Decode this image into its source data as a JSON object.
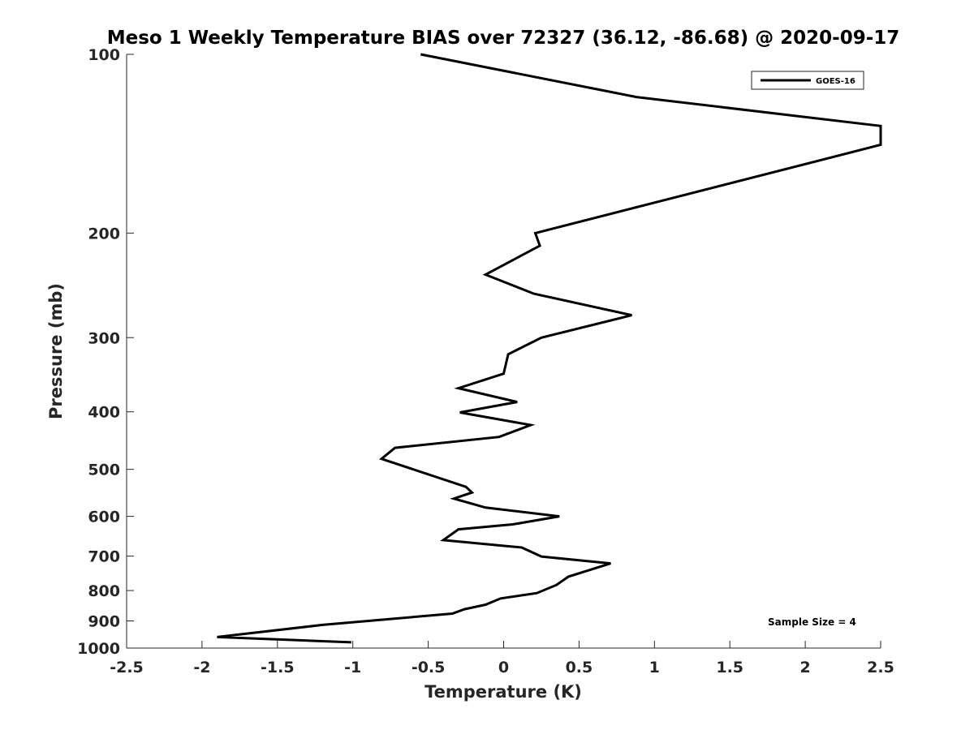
{
  "chart_data": {
    "type": "line",
    "title": "Meso 1 Weekly Temperature BIAS over 72327 (36.12, -86.68) @ 2020-09-17",
    "xlabel": "Temperature (K)",
    "ylabel": "Pressure (mb)",
    "xlim": [
      -2.5,
      2.5
    ],
    "ylim": [
      100,
      1000
    ],
    "y_scale": "log",
    "y_reversed": true,
    "xticks": [
      -2.5,
      -2,
      -1.5,
      -1,
      -0.5,
      0,
      0.5,
      1,
      1.5,
      2,
      2.5
    ],
    "xtick_labels": [
      "-2.5",
      "-2",
      "-1.5",
      "-1",
      "-0.5",
      "0",
      "0.5",
      "1",
      "1.5",
      "2",
      "2.5"
    ],
    "yticks": [
      100,
      200,
      300,
      400,
      500,
      600,
      700,
      800,
      900,
      1000
    ],
    "ytick_labels": [
      "100",
      "200",
      "300",
      "400",
      "500",
      "600",
      "700",
      "800",
      "900",
      "1000"
    ],
    "grid": false,
    "legend": {
      "position": "top-right",
      "entries": [
        "GOES-16"
      ]
    },
    "annotation": "Sample Size = 4",
    "series": [
      {
        "name": "GOES-16",
        "color": "#000000",
        "x": [
          -0.55,
          0.88,
          2.5,
          2.5,
          0.21,
          0.24,
          -0.12,
          0.2,
          0.85,
          0.25,
          0.03,
          0,
          -0.3,
          0.09,
          -0.29,
          0.18,
          -0.03,
          -0.72,
          -0.81,
          -0.25,
          -0.21,
          -0.33,
          -0.12,
          0.37,
          0.06,
          -0.3,
          -0.4,
          0.12,
          0.25,
          0.71,
          0.43,
          0.35,
          0.22,
          -0.02,
          -0.12,
          -0.26,
          -0.34,
          -1.2,
          -1.9,
          -1.01
        ],
        "y": [
          100,
          118,
          132,
          142,
          200,
          210,
          235,
          253,
          275,
          300,
          320,
          345,
          365,
          385,
          401,
          421,
          441,
          460,
          480,
          535,
          547,
          560,
          580,
          600,
          619,
          631,
          658,
          677,
          701,
          720,
          758,
          783,
          808,
          825,
          845,
          860,
          875,
          914,
          958,
          978
        ]
      }
    ]
  }
}
